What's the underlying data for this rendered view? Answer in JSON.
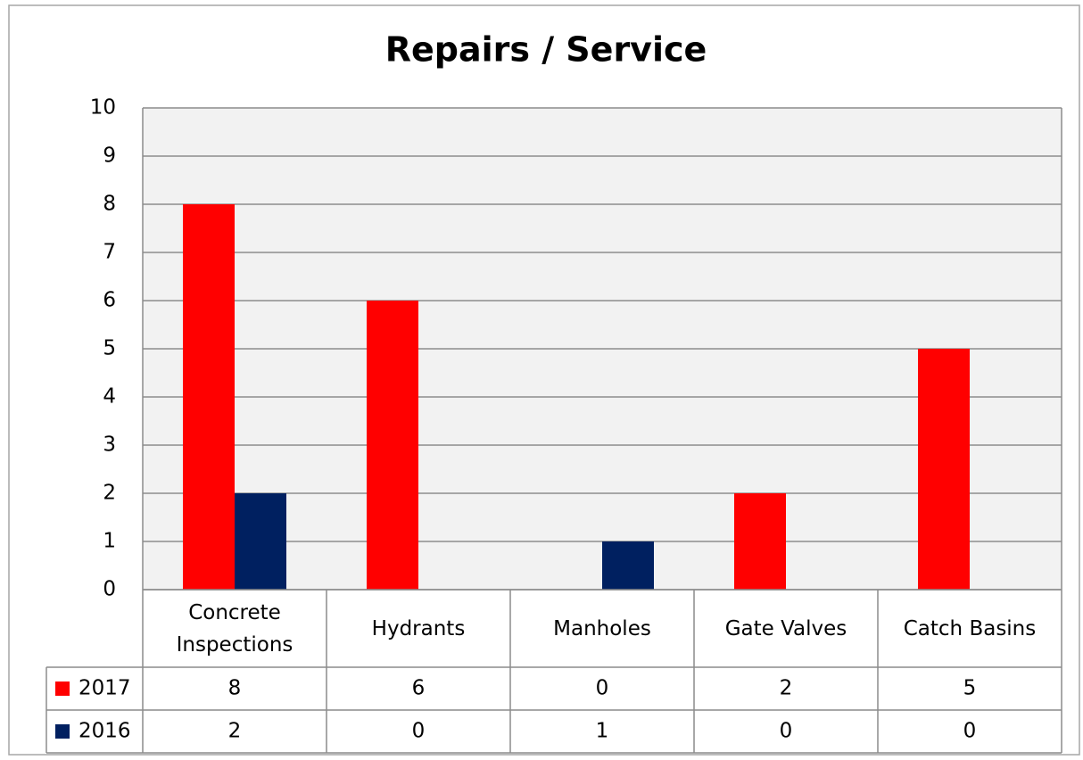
{
  "chart_data": {
    "type": "bar",
    "title": "Repairs / Service",
    "categories": [
      "Concrete Inspections",
      "Hydrants",
      "Manholes",
      "Gate Valves",
      "Catch Basins"
    ],
    "series": [
      {
        "name": "2017",
        "color": "#ff0000",
        "values": [
          8,
          6,
          0,
          2,
          5
        ]
      },
      {
        "name": "2016",
        "color": "#002060",
        "values": [
          2,
          0,
          1,
          0,
          0
        ]
      }
    ],
    "ylim": [
      0,
      10
    ],
    "yticks": [
      0,
      1,
      2,
      3,
      4,
      5,
      6,
      7,
      8,
      9,
      10
    ],
    "grid": true
  }
}
